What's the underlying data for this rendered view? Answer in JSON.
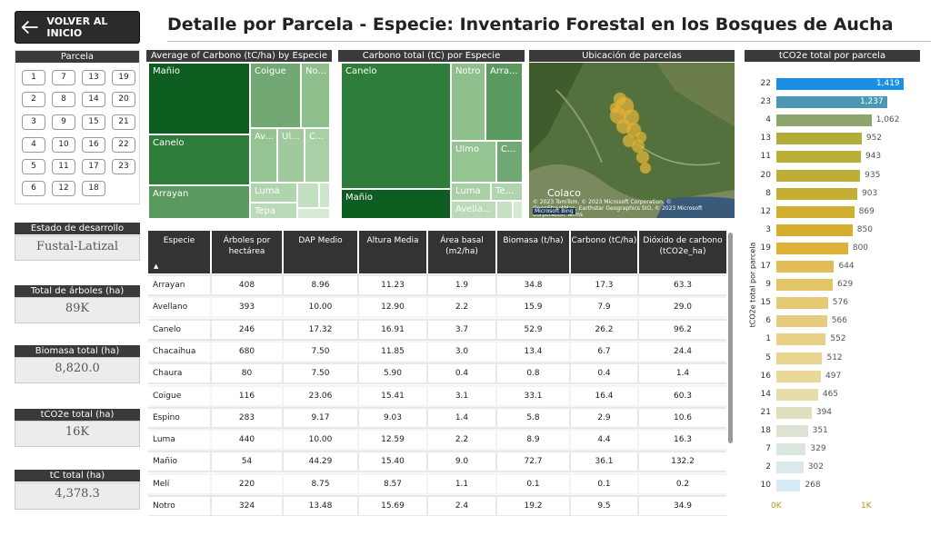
{
  "back_button": {
    "label": "VOLVER AL INICIO"
  },
  "title": "Detalle por Parcela - Especie: Inventario Forestal en los Bosques de Aucha",
  "parcela": {
    "header": "Parcela",
    "items": [
      "1",
      "7",
      "13",
      "19",
      "2",
      "8",
      "14",
      "20",
      "3",
      "9",
      "15",
      "21",
      "4",
      "10",
      "16",
      "22",
      "5",
      "11",
      "17",
      "23",
      "6",
      "12",
      "18"
    ]
  },
  "estado": {
    "header": "Estado de desarrollo",
    "value": "Fustal-Latizal"
  },
  "kpis": [
    {
      "label": "Total de árboles (ha)",
      "value": "89K"
    },
    {
      "label": "Biomasa total (ha)",
      "value": "8,820.0"
    },
    {
      "label": "tCO2e total (ha)",
      "value": "16K"
    },
    {
      "label": "tC total (ha)",
      "value": "4,378.3"
    }
  ],
  "treemap1": {
    "header": "Average of Carbono (tC/ha) by Especie",
    "labels": [
      "Mañio",
      "Canelo",
      "Arrayan",
      "Coigue",
      "No...",
      "Av...",
      "Ul...",
      "C...",
      "Luma",
      "Tepa"
    ]
  },
  "treemap2": {
    "header": "Carbono total (tC) por Especie",
    "labels": [
      "Canelo",
      "Notro",
      "Arra...",
      "Mañio",
      "Ulmo",
      "C...",
      "Luma",
      "Te...",
      "Avella..."
    ]
  },
  "map": {
    "header": "Ubicación de parcelas",
    "place": "Colaco",
    "attribution": "© 2023 TomTom, © 2023 Microsoft Corporation, © OpenStreetMap, Earthstar Geographics SIO, © 2023 Microsoft Corporation Terms",
    "logo": "Microsoft Bing"
  },
  "table": {
    "columns": [
      "Especie",
      "Árboles por hectárea",
      "DAP Medio",
      "Altura Media",
      "Área basal (m2/ha)",
      "Biomasa (t/ha)",
      "Carbono (tC/ha)",
      "Dióxido de carbono (tCO2e_ha)"
    ],
    "sort_indicator": "▲",
    "rows": [
      [
        "Arrayan",
        "408",
        "8.96",
        "11.23",
        "1.9",
        "34.8",
        "17.3",
        "63.3"
      ],
      [
        "Avellano",
        "393",
        "10.00",
        "12.90",
        "2.2",
        "15.9",
        "7.9",
        "29.0"
      ],
      [
        "Canelo",
        "246",
        "17.32",
        "16.91",
        "3.7",
        "52.9",
        "26.2",
        "96.2"
      ],
      [
        "Chacaihua",
        "680",
        "7.50",
        "11.85",
        "3.0",
        "13.4",
        "6.7",
        "24.4"
      ],
      [
        "Chaura",
        "80",
        "7.50",
        "5.90",
        "0.4",
        "0.8",
        "0.4",
        "1.4"
      ],
      [
        "Coigue",
        "116",
        "23.06",
        "15.41",
        "3.1",
        "33.1",
        "16.4",
        "60.3"
      ],
      [
        "Espino",
        "283",
        "9.17",
        "9.03",
        "1.4",
        "5.8",
        "2.9",
        "10.6"
      ],
      [
        "Luma",
        "440",
        "10.00",
        "12.59",
        "2.2",
        "8.9",
        "4.4",
        "16.3"
      ],
      [
        "Mañio",
        "54",
        "44.29",
        "15.40",
        "9.0",
        "72.7",
        "36.1",
        "132.2"
      ],
      [
        "Melí",
        "220",
        "8.75",
        "8.57",
        "1.1",
        "0.1",
        "0.1",
        "0.2"
      ],
      [
        "Notro",
        "324",
        "13.48",
        "15.69",
        "2.4",
        "19.2",
        "9.5",
        "34.9"
      ]
    ]
  },
  "chart_data": {
    "type": "bar",
    "title": "tCO2e total por parcela",
    "ylabel": "tCO2e total por parcela",
    "xlabel": "",
    "xlim": [
      0,
      1420
    ],
    "x_ticks": [
      "0K",
      "1K"
    ],
    "categories": [
      "22",
      "23",
      "4",
      "13",
      "11",
      "20",
      "8",
      "12",
      "3",
      "19",
      "17",
      "9",
      "15",
      "6",
      "1",
      "5",
      "16",
      "14",
      "21",
      "18",
      "7",
      "2",
      "10"
    ],
    "values": [
      1419,
      1237,
      1062,
      952,
      943,
      935,
      903,
      869,
      850,
      800,
      644,
      629,
      576,
      566,
      552,
      512,
      497,
      465,
      394,
      351,
      329,
      302,
      268
    ],
    "value_labels": [
      "1,419",
      "1,237",
      "1,062",
      "952",
      "943",
      "935",
      "903",
      "869",
      "850",
      "800",
      "644",
      "629",
      "576",
      "566",
      "552",
      "512",
      "497",
      "465",
      "394",
      "351",
      "329",
      "302",
      "268"
    ],
    "colors": [
      "#1a8fe3",
      "#4a98b4",
      "#8ca66d",
      "#b2ac3a",
      "#b8ae38",
      "#bcae36",
      "#c4ae34",
      "#cfae30",
      "#d6ae2e",
      "#dcb238",
      "#e0bd58",
      "#e3c468",
      "#e5c975",
      "#e6cc7e",
      "#e8d086",
      "#e8d48f",
      "#e9d899",
      "#e5dbab",
      "#e0dfc0",
      "#dde3d2",
      "#dce6e0",
      "#dbe9ea",
      "#d6e9f6"
    ]
  }
}
